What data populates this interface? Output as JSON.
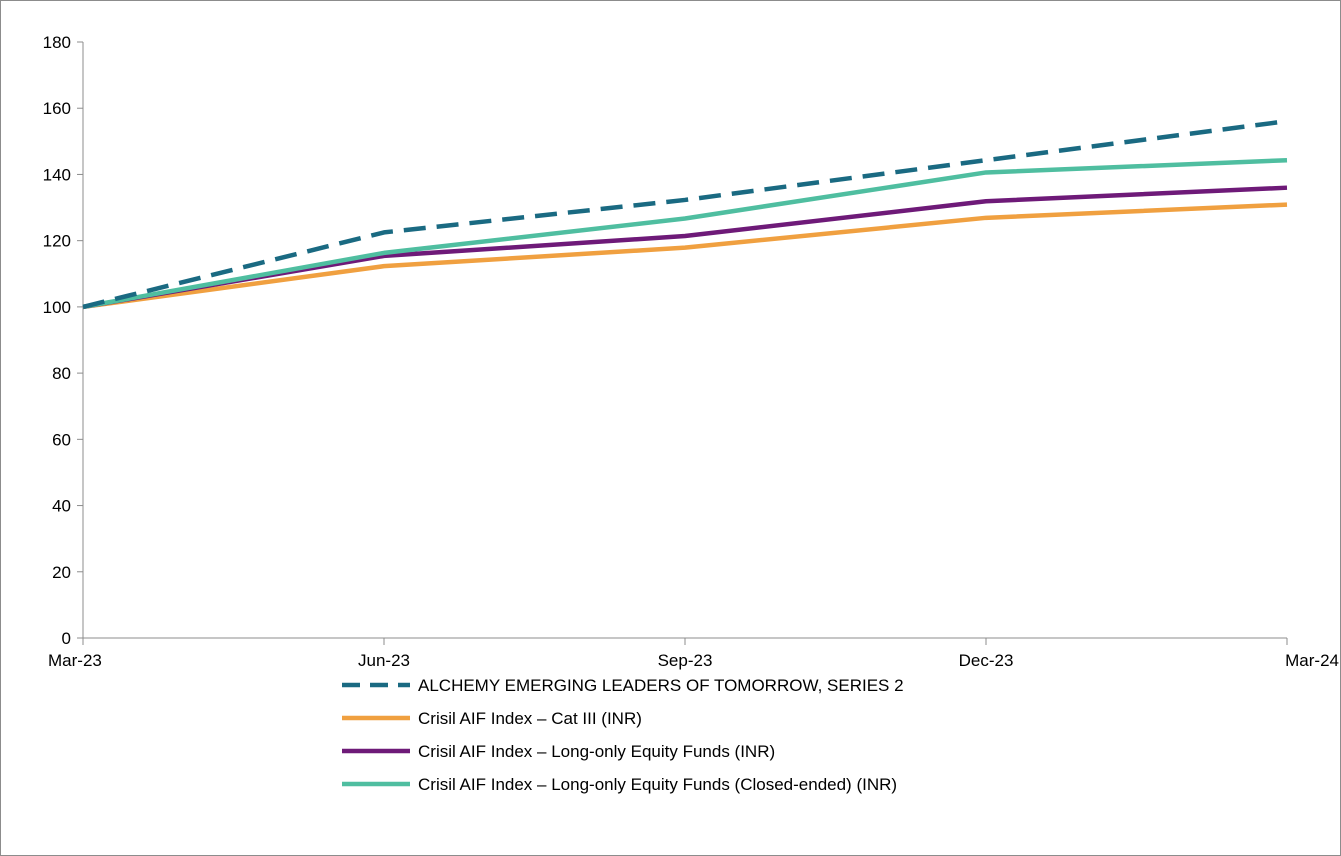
{
  "chart_data": {
    "type": "line",
    "x": [
      "Mar-23",
      "Jun-23",
      "Sep-23",
      "Dec-23",
      "Mar-24"
    ],
    "ylim": [
      0,
      180
    ],
    "yticks": [
      0,
      20,
      40,
      60,
      80,
      100,
      120,
      140,
      160,
      180
    ],
    "grid": false,
    "legend_position": "bottom",
    "series": [
      {
        "name": "ALCHEMY EMERGING LEADERS OF TOMORROW, SERIES 2",
        "color": "#1a6a82",
        "dash": true,
        "values": [
          100,
          122.5,
          132.3,
          144.3,
          156.1
        ]
      },
      {
        "name": "Crisil AIF Index – Cat III (INR)",
        "color": "#f0a040",
        "dash": false,
        "values": [
          100,
          112.3,
          117.9,
          126.9,
          130.9
        ]
      },
      {
        "name": "Crisil AIF Index – Long-only Equity Funds (INR)",
        "color": "#6e1a78",
        "dash": false,
        "values": [
          100,
          115.4,
          121.4,
          131.9,
          136.0
        ]
      },
      {
        "name": "Crisil AIF Index – Long-only Equity Funds (Closed-ended) (INR)",
        "color": "#4fbea0",
        "dash": false,
        "values": [
          100,
          116.3,
          126.7,
          140.6,
          144.3
        ]
      }
    ]
  }
}
